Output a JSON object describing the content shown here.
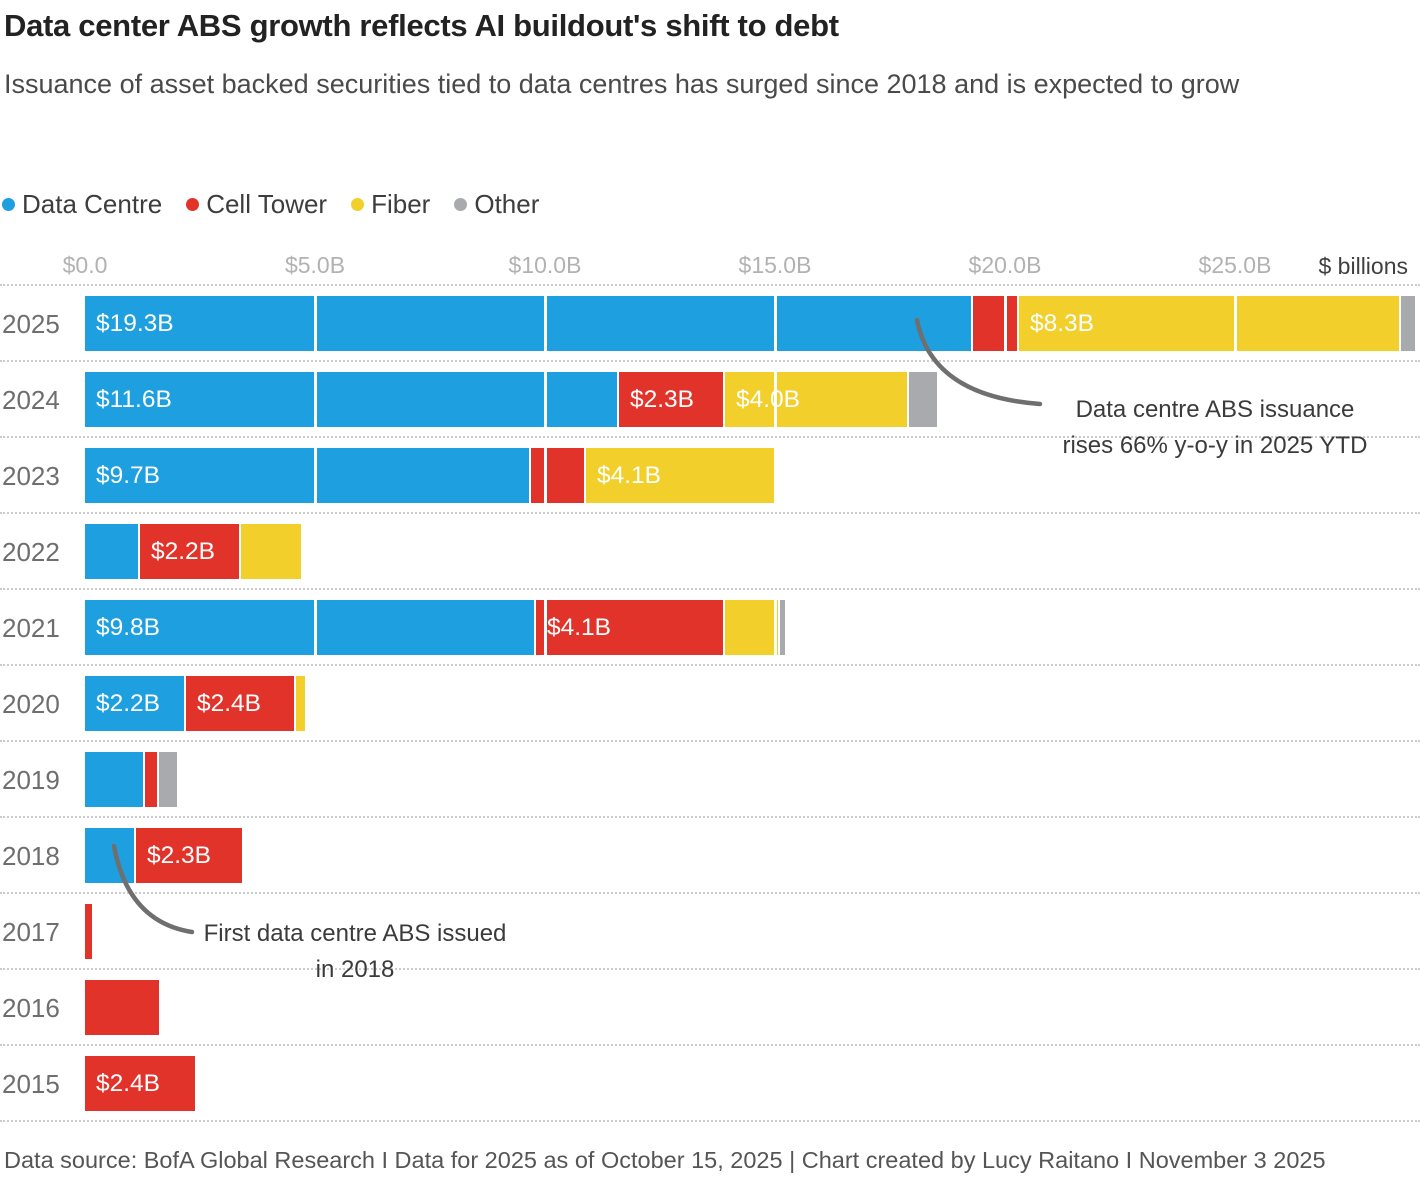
{
  "header": {
    "title": "Data center ABS growth reflects AI buildout's shift to debt",
    "subtitle": "Issuance of asset backed securities tied to data centres has surged since 2018 and is expected to grow"
  },
  "legend": [
    {
      "label": "Data Centre",
      "color": "#1d9fe0"
    },
    {
      "label": "Cell Tower",
      "color": "#e2332b"
    },
    {
      "label": "Fiber",
      "color": "#f2cf2a"
    },
    {
      "label": "Other",
      "color": "#a8aaad"
    }
  ],
  "axis": {
    "ticks": [
      {
        "label": "$0.0",
        "value": 0
      },
      {
        "label": "$5.0B",
        "value": 5
      },
      {
        "label": "$10.0B",
        "value": 10
      },
      {
        "label": "$15.0B",
        "value": 15
      },
      {
        "label": "$20.0B",
        "value": 20
      },
      {
        "label": "$25.0B",
        "value": 25
      }
    ],
    "unit_label": "$ billions"
  },
  "chart_data": {
    "type": "bar",
    "orientation": "horizontal",
    "stacked": true,
    "unit": "USD billions",
    "x_range": [
      0,
      29
    ],
    "grid": true,
    "legend_position": "top",
    "series_names": [
      "Data Centre",
      "Cell Tower",
      "Fiber",
      "Other"
    ],
    "rows": [
      {
        "year": "2025",
        "segments": [
          {
            "series": "Data Centre",
            "value": 19.3,
            "label": "$19.3B"
          },
          {
            "series": "Cell Tower",
            "value": 1.0,
            "label": ""
          },
          {
            "series": "Fiber",
            "value": 8.3,
            "label": "$8.3B"
          },
          {
            "series": "Other",
            "value": 0.3,
            "label": ""
          }
        ]
      },
      {
        "year": "2024",
        "segments": [
          {
            "series": "Data Centre",
            "value": 11.6,
            "label": "$11.6B"
          },
          {
            "series": "Cell Tower",
            "value": 2.3,
            "label": "$2.3B"
          },
          {
            "series": "Fiber",
            "value": 4.0,
            "label": "$4.0B"
          },
          {
            "series": "Other",
            "value": 0.6,
            "label": ""
          }
        ]
      },
      {
        "year": "2023",
        "segments": [
          {
            "series": "Data Centre",
            "value": 9.7,
            "label": "$9.7B"
          },
          {
            "series": "Cell Tower",
            "value": 1.2,
            "label": ""
          },
          {
            "series": "Fiber",
            "value": 4.1,
            "label": "$4.1B"
          }
        ]
      },
      {
        "year": "2022",
        "segments": [
          {
            "series": "Data Centre",
            "value": 1.2,
            "label": ""
          },
          {
            "series": "Cell Tower",
            "value": 2.2,
            "label": "$2.2B"
          },
          {
            "series": "Fiber",
            "value": 1.3,
            "label": ""
          }
        ]
      },
      {
        "year": "2021",
        "segments": [
          {
            "series": "Data Centre",
            "value": 9.8,
            "label": "$9.8B"
          },
          {
            "series": "Cell Tower",
            "value": 4.1,
            "label": "$4.1B"
          },
          {
            "series": "Fiber",
            "value": 1.2,
            "label": ""
          },
          {
            "series": "Other",
            "value": 0.1,
            "label": ""
          }
        ]
      },
      {
        "year": "2020",
        "segments": [
          {
            "series": "Data Centre",
            "value": 2.2,
            "label": "$2.2B"
          },
          {
            "series": "Cell Tower",
            "value": 2.4,
            "label": "$2.4B"
          },
          {
            "series": "Fiber",
            "value": 0.2,
            "label": ""
          }
        ]
      },
      {
        "year": "2019",
        "segments": [
          {
            "series": "Data Centre",
            "value": 1.3,
            "label": ""
          },
          {
            "series": "Cell Tower",
            "value": 0.3,
            "label": ""
          },
          {
            "series": "Other",
            "value": 0.4,
            "label": ""
          }
        ]
      },
      {
        "year": "2018",
        "segments": [
          {
            "series": "Data Centre",
            "value": 1.1,
            "label": ""
          },
          {
            "series": "Cell Tower",
            "value": 2.3,
            "label": "$2.3B"
          }
        ]
      },
      {
        "year": "2017",
        "segments": [
          {
            "series": "Cell Tower",
            "value": 0.15,
            "label": ""
          }
        ]
      },
      {
        "year": "2016",
        "segments": [
          {
            "series": "Cell Tower",
            "value": 1.6,
            "label": ""
          }
        ]
      },
      {
        "year": "2015",
        "segments": [
          {
            "series": "Cell Tower",
            "value": 2.4,
            "label": "$2.4B"
          }
        ]
      }
    ]
  },
  "annotations": [
    {
      "line1": "Data centre ABS issuance",
      "line2": "rises 66% y-o-y in 2025 YTD"
    },
    {
      "line1": "First data centre ABS issued",
      "line2": "in 2018"
    }
  ],
  "footer": {
    "text": "Data source: BofA Global Research I Data for 2025 as of October 15, 2025 | Chart created by Lucy Raitano I November 3 2025"
  }
}
